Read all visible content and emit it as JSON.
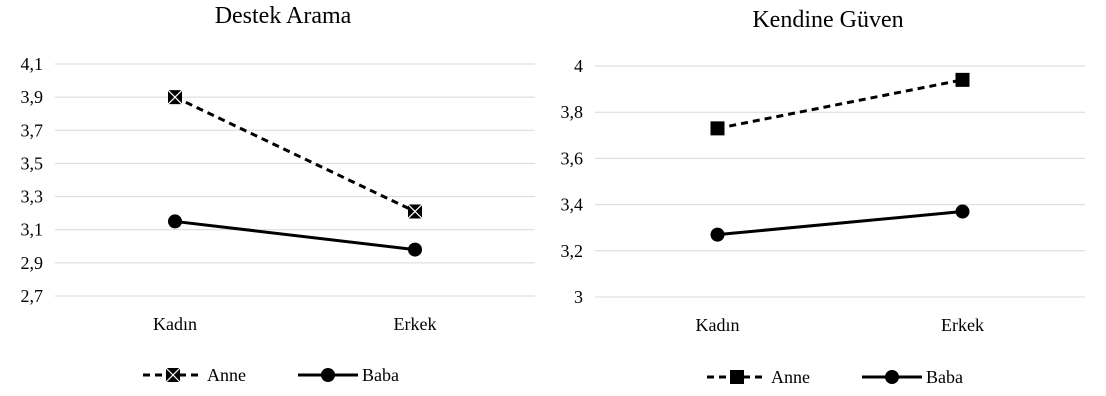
{
  "chart_data": [
    {
      "type": "line",
      "title": "Destek Arama",
      "categories": [
        "Kadın",
        "Erkek"
      ],
      "ylim": [
        2.7,
        4.1
      ],
      "yticks": [
        "2,7",
        "2,9",
        "3,1",
        "3,3",
        "3,5",
        "3,7",
        "3,9",
        "4,1"
      ],
      "grid": true,
      "legend_position": "bottom",
      "series": [
        {
          "name": "Anne",
          "values": [
            3.9,
            3.21
          ],
          "style": "dashed",
          "marker": "square-x",
          "color": "#000000"
        },
        {
          "name": "Baba",
          "values": [
            3.15,
            2.98
          ],
          "style": "solid",
          "marker": "circle",
          "color": "#000000"
        }
      ]
    },
    {
      "type": "line",
      "title": "Kendine Güven",
      "categories": [
        "Kadın",
        "Erkek"
      ],
      "ylim": [
        3.0,
        4.0
      ],
      "yticks": [
        "3",
        "3,2",
        "3,4",
        "3,6",
        "3,8",
        "4"
      ],
      "grid": true,
      "legend_position": "bottom",
      "series": [
        {
          "name": "Anne",
          "values": [
            3.73,
            3.94
          ],
          "style": "dashed",
          "marker": "square",
          "color": "#000000"
        },
        {
          "name": "Baba",
          "values": [
            3.27,
            3.37
          ],
          "style": "solid",
          "marker": "circle",
          "color": "#000000"
        }
      ]
    }
  ]
}
